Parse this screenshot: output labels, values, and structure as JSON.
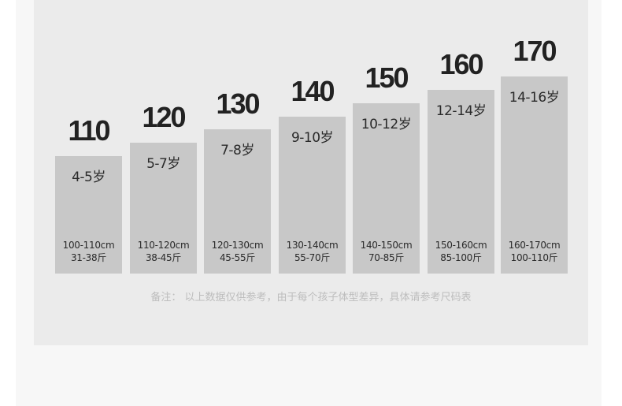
{
  "sizes": [
    {
      "size": "110",
      "age": "4-5岁",
      "height": "100-110cm",
      "weight": "31-38斤"
    },
    {
      "size": "120",
      "age": "5-7岁",
      "height": "110-120cm",
      "weight": "38-45斤"
    },
    {
      "size": "130",
      "age": "7-8岁",
      "height": "120-130cm",
      "weight": "45-55斤"
    },
    {
      "size": "140",
      "age": "9-10岁",
      "height": "130-140cm",
      "weight": "55-70斤"
    },
    {
      "size": "150",
      "age": "10-12岁",
      "height": "140-150cm",
      "weight": "70-85斤"
    },
    {
      "size": "160",
      "age": "12-14岁",
      "height": "150-160cm",
      "weight": "85-100斤"
    },
    {
      "size": "170",
      "age": "14-16岁",
      "height": "160-170cm",
      "weight": "100-110斤"
    }
  ],
  "note": "备注：  以上数据仅供参考，由于每个孩子体型差异，具体请参考尺码表",
  "colors": {
    "bar": "#c8c8c8",
    "panel": "#ebebeb",
    "background": "#f7f7f7",
    "text": "#222222"
  }
}
